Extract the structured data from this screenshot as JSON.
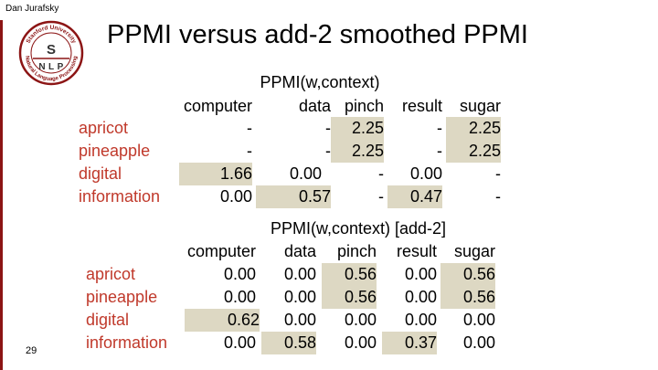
{
  "slide": {
    "author": "Dan Jurafsky",
    "title": "PPMI versus add-2 smoothed PPMI",
    "page_number": "29",
    "logo": {
      "top_text": "Stanford University",
      "letters": [
        "S",
        "N",
        "L",
        "P"
      ],
      "bottom_text": "Natural Language Processing"
    }
  },
  "colors": {
    "accent": "#8c1515",
    "row_label": "#c0392b",
    "highlight": "#ddd8c3"
  },
  "tables": [
    {
      "caption": "PPMI(w,context)",
      "columns": [
        "computer",
        "data",
        "pinch",
        "result",
        "sugar"
      ],
      "rows": [
        {
          "label": "apricot",
          "values": [
            "-",
            "-",
            "2.25",
            "-",
            "2.25"
          ]
        },
        {
          "label": "pineapple",
          "values": [
            "-",
            "-",
            "2.25",
            "-",
            "2.25"
          ]
        },
        {
          "label": "digital",
          "values": [
            "1.66",
            "0.00",
            "-",
            "0.00",
            "-"
          ]
        },
        {
          "label": "information",
          "values": [
            "0.00",
            "0.57",
            "-",
            "0.47",
            "-"
          ]
        }
      ]
    },
    {
      "caption": "PPMI(w,context) [add-2]",
      "columns": [
        "computer",
        "data",
        "pinch",
        "result",
        "sugar"
      ],
      "rows": [
        {
          "label": "apricot",
          "values": [
            "0.00",
            "0.00",
            "0.56",
            "0.00",
            "0.56"
          ]
        },
        {
          "label": "pineapple",
          "values": [
            "0.00",
            "0.00",
            "0.56",
            "0.00",
            "0.56"
          ]
        },
        {
          "label": "digital",
          "values": [
            "0.62",
            "0.00",
            "0.00",
            "0.00",
            "0.00"
          ]
        },
        {
          "label": "information",
          "values": [
            "0.00",
            "0.58",
            "0.00",
            "0.37",
            "0.00"
          ]
        }
      ]
    }
  ]
}
